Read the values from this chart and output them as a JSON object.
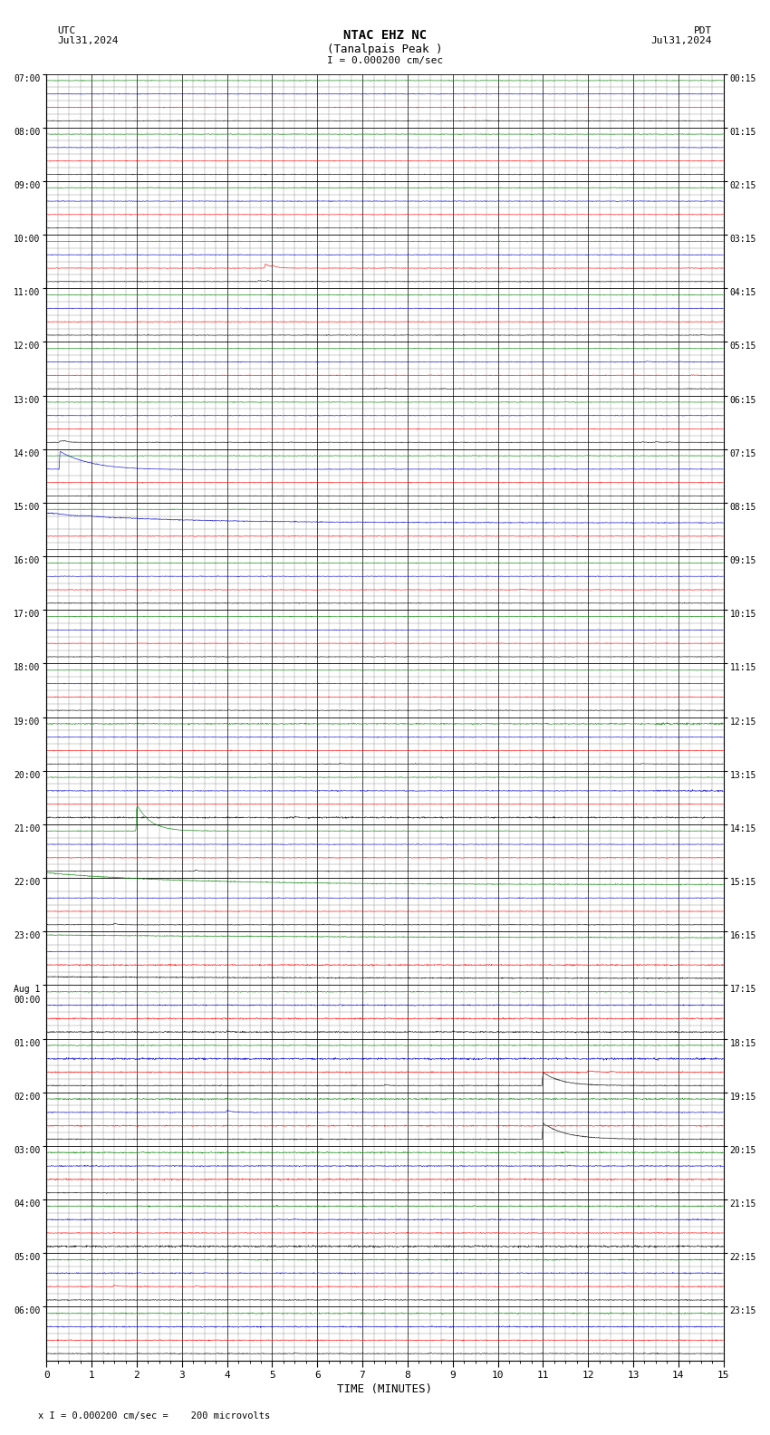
{
  "title_line1": "NTAC EHZ NC",
  "title_line2": "(Tanalpais Peak )",
  "scale_label": "I = 0.000200 cm/sec",
  "utc_label": "UTC",
  "utc_date": "Jul31,2024",
  "pdt_label": "PDT",
  "pdt_date": "Jul31,2024",
  "xlabel": "TIME (MINUTES)",
  "footer": "x I = 0.000200 cm/sec =    200 microvolts",
  "background_color": "#ffffff",
  "grid_major_color": "#000000",
  "grid_minor_color": "#888888",
  "x_min": 0,
  "x_max": 15,
  "num_rows": 24,
  "utc_times": [
    "07:00",
    "08:00",
    "09:00",
    "10:00",
    "11:00",
    "12:00",
    "13:00",
    "14:00",
    "15:00",
    "16:00",
    "17:00",
    "18:00",
    "19:00",
    "20:00",
    "21:00",
    "22:00",
    "23:00",
    "Aug 1\n00:00",
    "01:00",
    "02:00",
    "03:00",
    "04:00",
    "05:00",
    "06:00"
  ],
  "pdt_times": [
    "00:15",
    "01:15",
    "02:15",
    "03:15",
    "04:15",
    "05:15",
    "06:15",
    "07:15",
    "08:15",
    "09:15",
    "10:15",
    "11:15",
    "12:15",
    "13:15",
    "14:15",
    "15:15",
    "16:15",
    "17:15",
    "18:15",
    "19:15",
    "20:15",
    "21:15",
    "22:15",
    "23:15"
  ],
  "sub_trace_colors": [
    "#000000",
    "#ff0000",
    "#0000cc",
    "#008000"
  ],
  "noise_level": 0.003,
  "trace_linewidth": 0.4
}
